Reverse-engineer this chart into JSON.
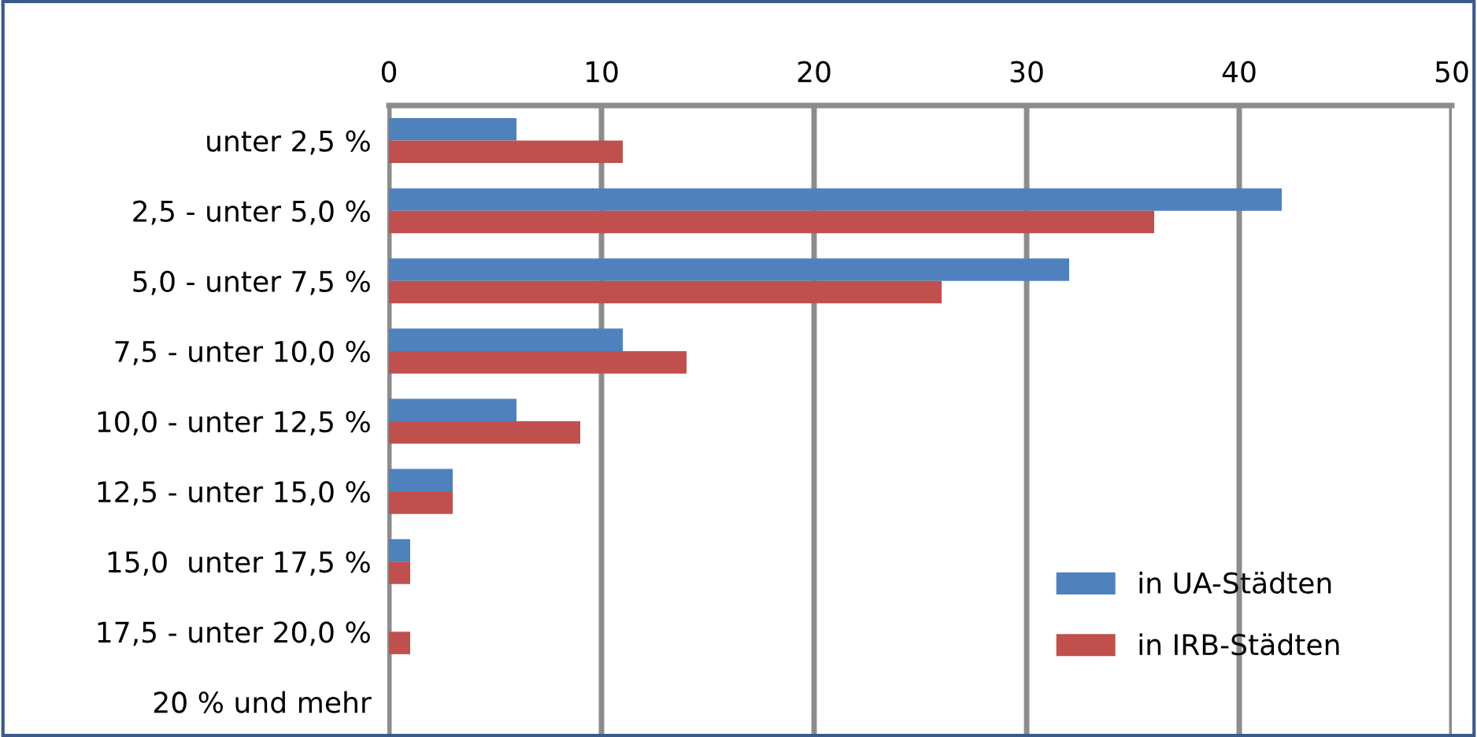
{
  "chart_data": {
    "type": "bar",
    "orientation": "horizontal",
    "categories": [
      "unter 2,5 %",
      "2,5 - unter 5,0 %",
      "5,0 - unter 7,5 %",
      "7,5 - unter 10,0 %",
      "10,0 - unter 12,5 %",
      "12,5 - unter 15,0 %",
      "15,0  unter 17,5 %",
      "17,5 - unter 20,0 %",
      "20 % und mehr"
    ],
    "series": [
      {
        "name": "in UA-Städten",
        "color": "#4f81bd",
        "values": [
          6,
          42,
          32,
          11,
          6,
          3,
          1,
          0,
          0
        ]
      },
      {
        "name": "in IRB-Städten",
        "color": "#c0504d",
        "values": [
          11,
          36,
          26,
          14,
          9,
          3,
          1,
          1,
          0
        ]
      }
    ],
    "xlim": [
      0,
      50
    ],
    "xticks": [
      0,
      10,
      20,
      30,
      40,
      50
    ],
    "grid": "x",
    "legend": "bottom right"
  }
}
